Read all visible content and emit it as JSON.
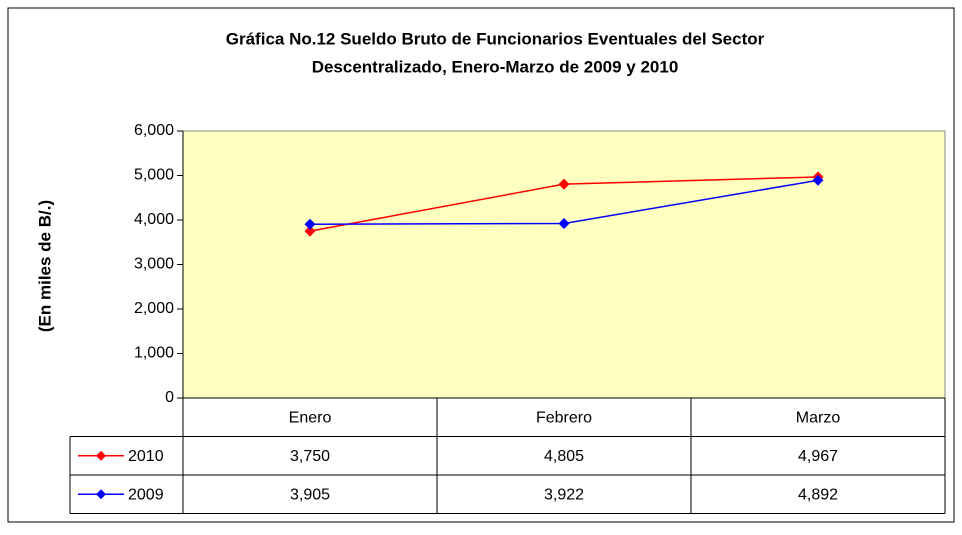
{
  "chart_data": {
    "type": "line",
    "title": [
      "Gráfica No.12 Sueldo Bruto de Funcionarios Eventuales del Sector",
      "Descentralizado, Enero-Marzo de 2009 y 2010"
    ],
    "ylabel": "(En miles de B/.)",
    "categories": [
      "Enero",
      "Febrero",
      "Marzo"
    ],
    "series": [
      {
        "name": "2010",
        "color": "#ff0000",
        "values": [
          3750,
          4805,
          4967
        ],
        "value_labels": [
          "3,750",
          "4,805",
          "4,967"
        ]
      },
      {
        "name": "2009",
        "color": "#0000ff",
        "values": [
          3905,
          3922,
          4892
        ],
        "value_labels": [
          "3,905",
          "3,922",
          "4,892"
        ]
      }
    ],
    "ylim": [
      0,
      6000
    ],
    "yticks": [
      0,
      {
        "value": 1000,
        "label": "1,000"
      },
      {
        "value": 2000,
        "label": "2,000"
      },
      {
        "value": 3000,
        "label": "3,000"
      },
      {
        "value": 4000,
        "label": "4,000"
      },
      {
        "value": 5000,
        "label": "5,000"
      },
      {
        "value": 6000,
        "label": "6,000"
      }
    ],
    "plot_background": "#ffffc0"
  }
}
